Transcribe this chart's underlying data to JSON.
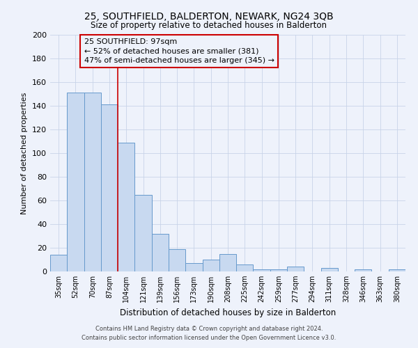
{
  "title1": "25, SOUTHFIELD, BALDERTON, NEWARK, NG24 3QB",
  "title2": "Size of property relative to detached houses in Balderton",
  "xlabel": "Distribution of detached houses by size in Balderton",
  "ylabel": "Number of detached properties",
  "footer1": "Contains HM Land Registry data © Crown copyright and database right 2024.",
  "footer2": "Contains public sector information licensed under the Open Government Licence v3.0.",
  "bar_labels": [
    "35sqm",
    "52sqm",
    "70sqm",
    "87sqm",
    "104sqm",
    "121sqm",
    "139sqm",
    "156sqm",
    "173sqm",
    "190sqm",
    "208sqm",
    "225sqm",
    "242sqm",
    "259sqm",
    "277sqm",
    "294sqm",
    "311sqm",
    "328sqm",
    "346sqm",
    "363sqm",
    "380sqm"
  ],
  "bar_values": [
    14,
    151,
    151,
    141,
    109,
    65,
    32,
    19,
    7,
    10,
    15,
    6,
    2,
    2,
    4,
    0,
    3,
    0,
    2,
    0,
    2
  ],
  "bar_color": "#c8d9f0",
  "bar_edge_color": "#6699cc",
  "ylim": [
    0,
    200
  ],
  "yticks": [
    0,
    20,
    40,
    60,
    80,
    100,
    120,
    140,
    160,
    180,
    200
  ],
  "property_label": "25 SOUTHFIELD: 97sqm",
  "annotation_line1": "← 52% of detached houses are smaller (381)",
  "annotation_line2": "47% of semi-detached houses are larger (345) →",
  "vline_x_index": 3.5,
  "box_color": "#cc0000",
  "background_color": "#eef2fb"
}
